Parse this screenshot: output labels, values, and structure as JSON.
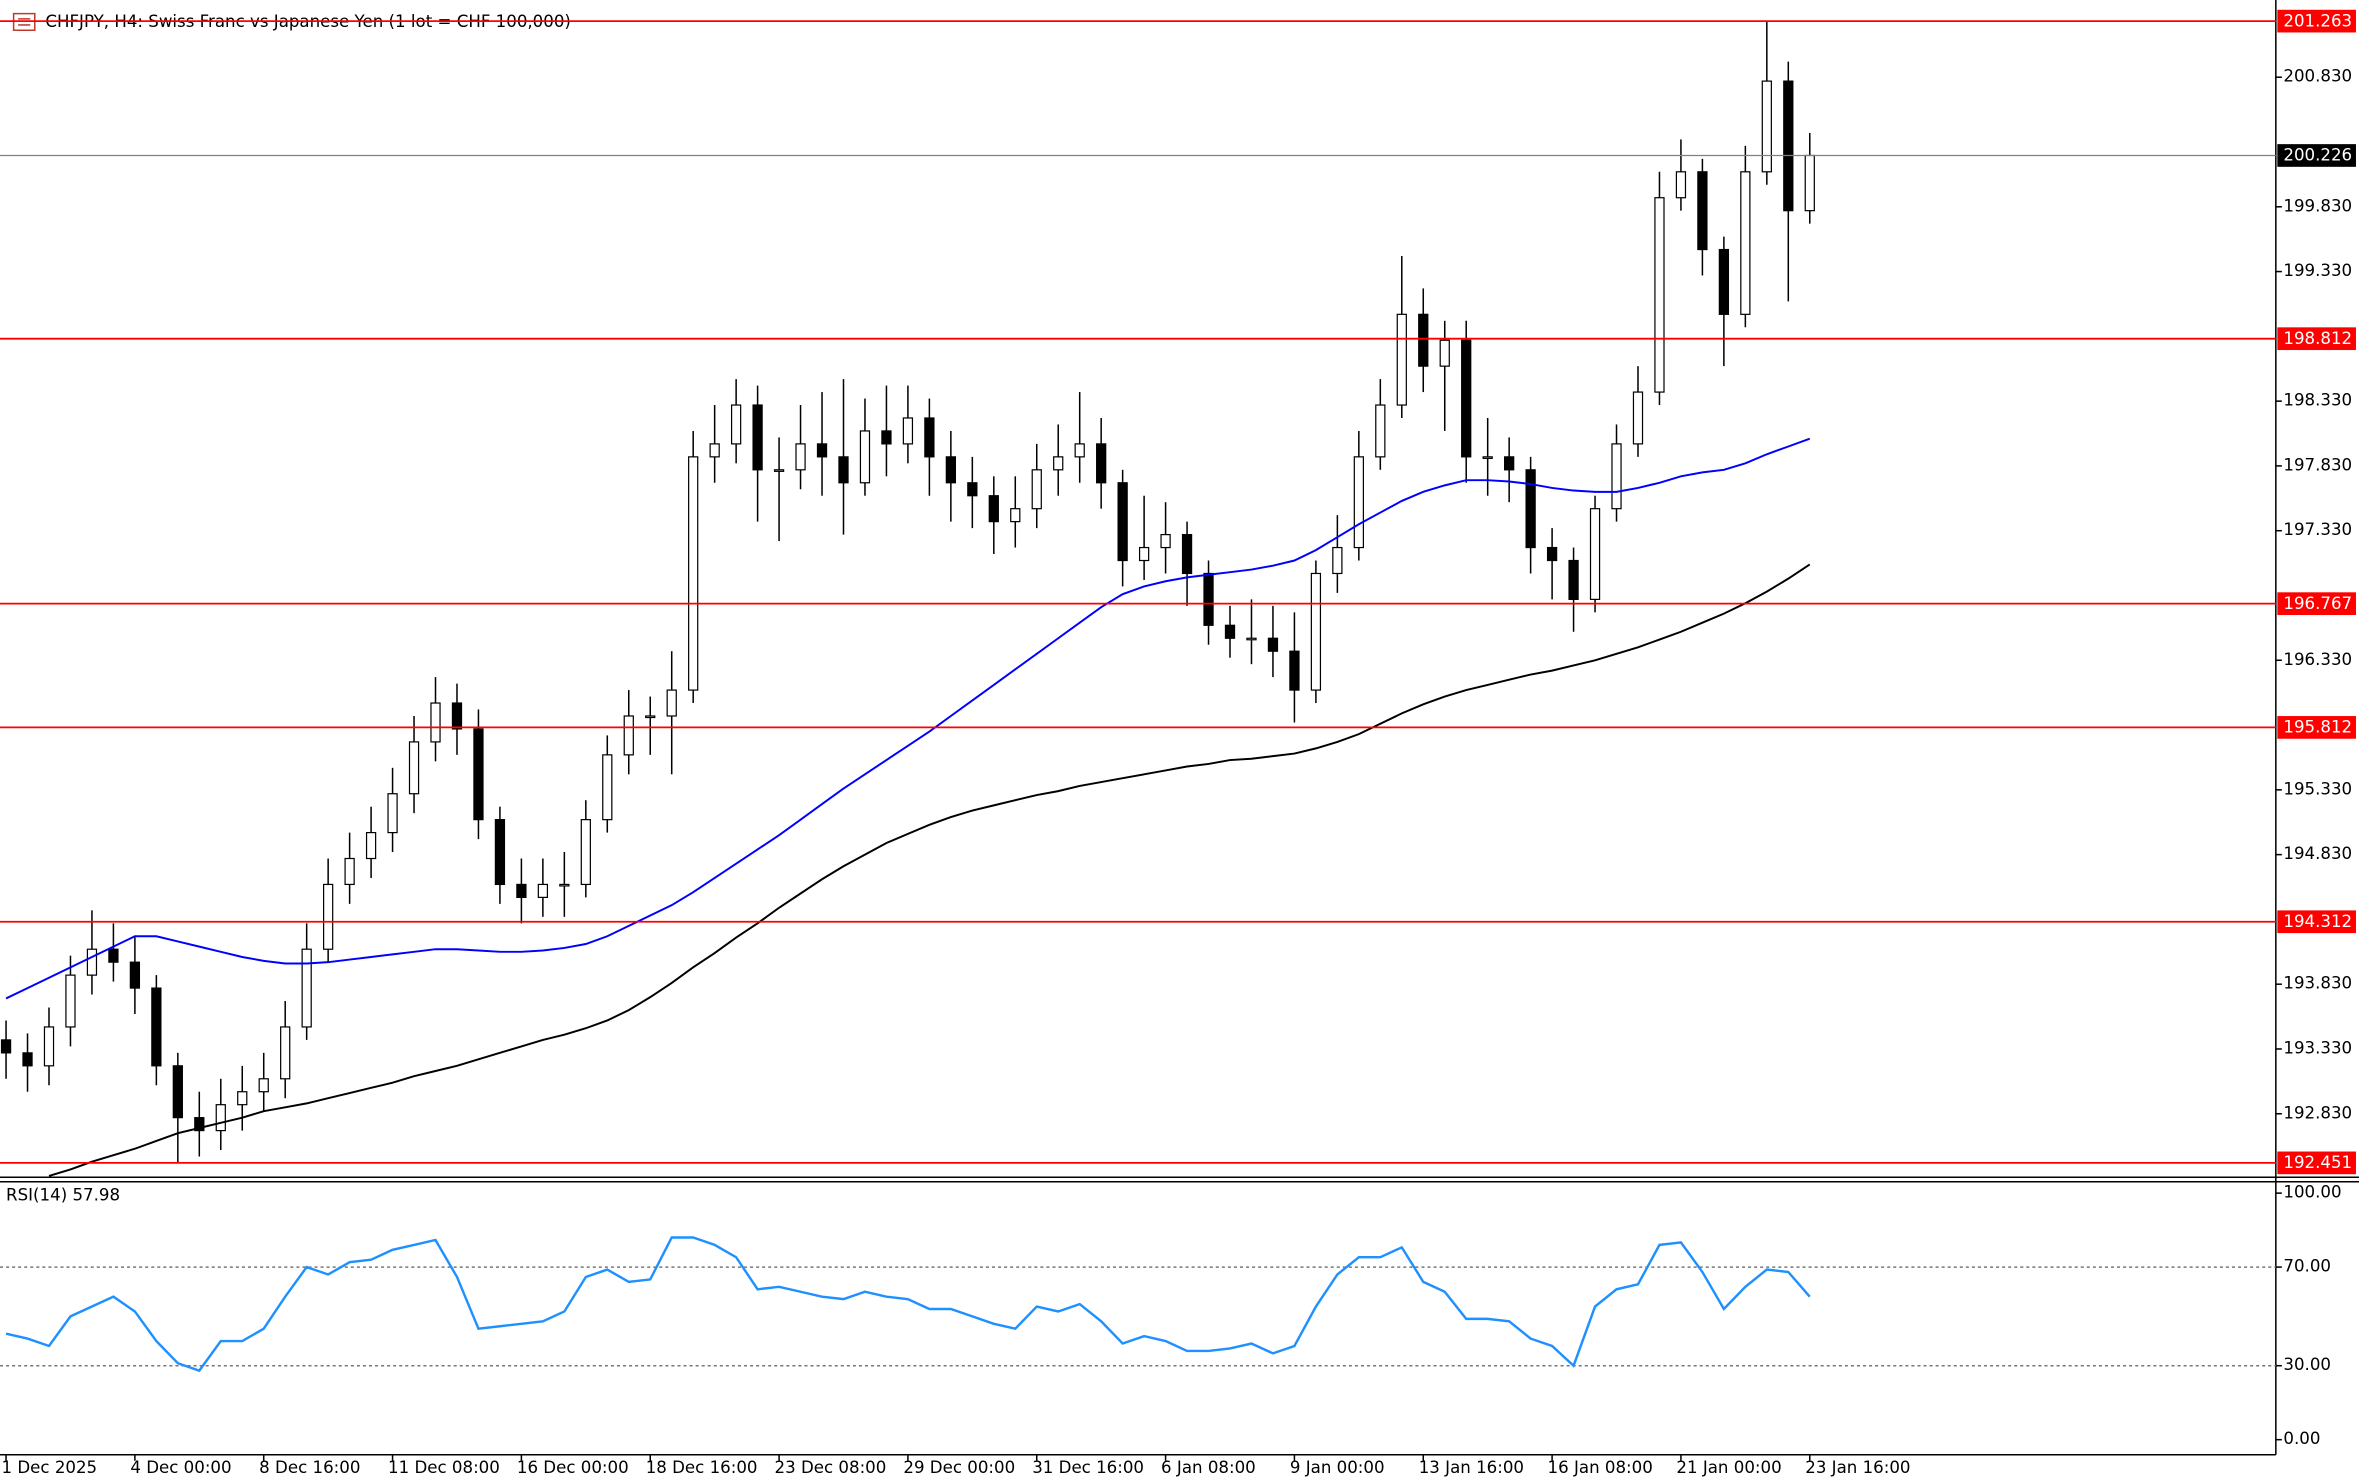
{
  "chart_data": [
    {
      "type": "candlestick",
      "title": "CHFJPY, H4:  Swiss Franc vs Japanese Yen (1 lot = CHF 100,000)",
      "categories": [
        "1 Dec 2025",
        null,
        null,
        null,
        null,
        null,
        "4 Dec 00:00",
        null,
        null,
        null,
        null,
        null,
        "8 Dec 16:00",
        null,
        null,
        null,
        null,
        null,
        "11 Dec 08:00",
        null,
        null,
        null,
        null,
        null,
        "16 Dec 00:00",
        null,
        null,
        null,
        null,
        null,
        "18 Dec 16:00",
        null,
        null,
        null,
        null,
        null,
        "23 Dec 08:00",
        null,
        null,
        null,
        null,
        null,
        "29 Dec 00:00",
        null,
        null,
        null,
        null,
        null,
        "31 Dec 16:00",
        null,
        null,
        null,
        null,
        null,
        "6 Jan 08:00",
        null,
        null,
        null,
        null,
        null,
        "9 Jan 00:00",
        null,
        null,
        null,
        null,
        null,
        "13 Jan 16:00",
        null,
        null,
        null,
        null,
        null,
        "16 Jan 08:00",
        null,
        null,
        null,
        null,
        null,
        "21 Jan 00:00",
        null,
        null,
        null,
        null,
        null,
        "23 Jan 16:00"
      ],
      "open": [
        193.4,
        193.3,
        193.2,
        193.5,
        193.9,
        194.1,
        194.0,
        193.8,
        193.2,
        192.8,
        192.7,
        192.9,
        193.0,
        193.1,
        193.5,
        194.1,
        194.6,
        194.8,
        195.0,
        195.3,
        195.7,
        196.0,
        195.8,
        195.1,
        194.6,
        194.5,
        194.6,
        194.6,
        195.1,
        195.6,
        195.9,
        195.9,
        196.1,
        197.9,
        198.0,
        198.3,
        197.8,
        197.8,
        198.0,
        197.9,
        197.7,
        198.1,
        198.0,
        198.2,
        197.9,
        197.7,
        197.6,
        197.4,
        197.5,
        197.8,
        197.9,
        198.0,
        197.7,
        197.1,
        197.2,
        197.3,
        197.0,
        196.6,
        196.5,
        196.5,
        196.4,
        196.1,
        197.0,
        197.2,
        197.9,
        198.3,
        199.0,
        198.6,
        198.8,
        197.9,
        197.9,
        197.8,
        197.2,
        197.1,
        196.8,
        197.5,
        198.0,
        198.4,
        199.9,
        200.1,
        199.5,
        199.0,
        200.1,
        200.8,
        199.8
      ],
      "high": [
        193.55,
        193.45,
        193.65,
        194.05,
        194.4,
        194.3,
        194.2,
        193.9,
        193.3,
        193.0,
        193.1,
        193.2,
        193.3,
        193.7,
        194.3,
        194.8,
        195.0,
        195.2,
        195.5,
        195.9,
        196.2,
        196.15,
        195.95,
        195.2,
        194.8,
        194.8,
        194.85,
        195.25,
        195.75,
        196.1,
        196.05,
        196.4,
        198.1,
        198.3,
        198.5,
        198.45,
        198.05,
        198.3,
        198.4,
        198.5,
        198.35,
        198.45,
        198.45,
        198.35,
        198.1,
        197.9,
        197.75,
        197.75,
        198.0,
        198.15,
        198.4,
        198.2,
        197.8,
        197.6,
        197.55,
        197.4,
        197.1,
        196.75,
        196.8,
        196.75,
        196.7,
        197.1,
        197.45,
        198.1,
        198.5,
        199.45,
        199.2,
        198.95,
        198.95,
        198.2,
        198.05,
        197.9,
        197.35,
        197.2,
        197.6,
        198.15,
        198.6,
        200.1,
        200.35,
        200.2,
        199.6,
        200.3,
        201.263,
        200.95,
        200.4
      ],
      "low": [
        193.1,
        193.0,
        193.05,
        193.35,
        193.75,
        193.85,
        193.6,
        193.05,
        192.45,
        192.5,
        192.55,
        192.7,
        192.85,
        192.95,
        193.4,
        194.0,
        194.45,
        194.65,
        194.85,
        195.15,
        195.55,
        195.6,
        194.95,
        194.45,
        194.3,
        194.35,
        194.35,
        194.5,
        195.0,
        195.45,
        195.6,
        195.45,
        196.0,
        197.7,
        197.85,
        197.4,
        197.25,
        197.65,
        197.6,
        197.3,
        197.6,
        197.75,
        197.85,
        197.6,
        197.4,
        197.35,
        197.15,
        197.2,
        197.35,
        197.6,
        197.7,
        197.5,
        196.9,
        196.95,
        197.0,
        196.75,
        196.45,
        196.35,
        196.3,
        196.2,
        195.85,
        196.0,
        196.85,
        197.1,
        197.8,
        198.2,
        198.4,
        198.1,
        197.7,
        197.6,
        197.55,
        197.0,
        196.8,
        196.55,
        196.7,
        197.4,
        197.9,
        198.3,
        199.8,
        199.3,
        198.6,
        198.9,
        200.0,
        199.1,
        199.7
      ],
      "close": [
        193.3,
        193.2,
        193.5,
        193.9,
        194.1,
        194.0,
        193.8,
        193.2,
        192.8,
        192.7,
        192.9,
        193.0,
        193.1,
        193.5,
        194.1,
        194.6,
        194.8,
        195.0,
        195.3,
        195.7,
        196.0,
        195.8,
        195.1,
        194.6,
        194.5,
        194.6,
        194.6,
        195.1,
        195.6,
        195.9,
        195.9,
        196.1,
        197.9,
        198.0,
        198.3,
        197.8,
        197.8,
        198.0,
        197.9,
        197.7,
        198.1,
        198.0,
        198.2,
        197.9,
        197.7,
        197.6,
        197.4,
        197.5,
        197.8,
        197.9,
        198.0,
        197.7,
        197.1,
        197.2,
        197.3,
        197.0,
        196.6,
        196.5,
        196.5,
        196.4,
        196.1,
        197.0,
        197.2,
        197.9,
        198.3,
        199.0,
        198.6,
        198.8,
        197.9,
        197.9,
        197.8,
        197.2,
        197.1,
        196.8,
        197.5,
        198.0,
        198.4,
        199.9,
        200.1,
        199.5,
        199.0,
        200.1,
        200.8,
        199.8,
        200.226
      ],
      "series": [
        {
          "color": "#0000ff",
          "values": [
            193.72,
            193.8,
            193.88,
            193.96,
            194.04,
            194.12,
            194.2,
            194.2,
            194.16,
            194.12,
            194.08,
            194.04,
            194.01,
            193.99,
            193.99,
            194.0,
            194.02,
            194.04,
            194.06,
            194.08,
            194.1,
            194.1,
            194.09,
            194.08,
            194.08,
            194.09,
            194.11,
            194.14,
            194.2,
            194.28,
            194.36,
            194.44,
            194.54,
            194.65,
            194.76,
            194.87,
            194.98,
            195.1,
            195.22,
            195.34,
            195.45,
            195.56,
            195.67,
            195.78,
            195.9,
            196.02,
            196.14,
            196.26,
            196.38,
            196.5,
            196.62,
            196.74,
            196.84,
            196.9,
            196.94,
            196.97,
            196.99,
            197.01,
            197.03,
            197.06,
            197.1,
            197.18,
            197.28,
            197.38,
            197.47,
            197.56,
            197.63,
            197.68,
            197.72,
            197.72,
            197.71,
            197.69,
            197.66,
            197.64,
            197.63,
            197.63,
            197.66,
            197.7,
            197.75,
            197.78,
            197.8,
            197.85,
            197.92,
            197.98,
            198.04
          ]
        },
        {
          "color": "#000000",
          "values": [
            null,
            null,
            192.35,
            192.4,
            192.46,
            192.51,
            192.56,
            192.62,
            192.68,
            192.72,
            192.76,
            192.8,
            192.85,
            192.88,
            192.91,
            192.95,
            192.99,
            193.03,
            193.07,
            193.12,
            193.16,
            193.2,
            193.25,
            193.3,
            193.35,
            193.4,
            193.44,
            193.49,
            193.55,
            193.63,
            193.73,
            193.84,
            193.96,
            194.07,
            194.19,
            194.3,
            194.42,
            194.53,
            194.64,
            194.74,
            194.83,
            194.92,
            194.99,
            195.06,
            195.12,
            195.17,
            195.21,
            195.25,
            195.29,
            195.32,
            195.36,
            195.39,
            195.42,
            195.45,
            195.48,
            195.51,
            195.53,
            195.56,
            195.57,
            195.59,
            195.61,
            195.65,
            195.7,
            195.76,
            195.84,
            195.92,
            195.99,
            196.05,
            196.1,
            196.14,
            196.18,
            196.22,
            196.25,
            196.29,
            196.33,
            196.38,
            196.43,
            196.49,
            196.55,
            196.62,
            196.69,
            196.77,
            196.86,
            196.96,
            197.07
          ]
        }
      ],
      "levels": [
        201.263,
        198.812,
        196.767,
        195.812,
        194.312,
        192.451
      ],
      "level_color": "#ff0000",
      "current_price": 200.226,
      "ylim": [
        192.346,
        201.426
      ],
      "yticks": [
        {
          "value": 192.83,
          "label": "192.830"
        },
        {
          "value": 193.33,
          "label": "193.330"
        },
        {
          "value": 193.83,
          "label": "193.830"
        },
        {
          "value": 194.83,
          "label": "194.830"
        },
        {
          "value": 195.33,
          "label": "195.330"
        },
        {
          "value": 196.33,
          "label": "196.330"
        },
        {
          "value": 197.33,
          "label": "197.330"
        },
        {
          "value": 197.83,
          "label": "197.830"
        },
        {
          "value": 198.33,
          "label": "198.330"
        },
        {
          "value": 199.33,
          "label": "199.330"
        },
        {
          "value": 199.83,
          "label": "199.830"
        },
        {
          "value": 200.83,
          "label": "200.830"
        }
      ]
    },
    {
      "type": "line",
      "title": "RSI(14) 57.98",
      "series": [
        {
          "color": "#1e90ff",
          "values": [
            43,
            41,
            38,
            50,
            54,
            58,
            52,
            40,
            31,
            28,
            40,
            40,
            45,
            58,
            70,
            67,
            72,
            73,
            77,
            79,
            81,
            66,
            45,
            46,
            47,
            48,
            52,
            66,
            69,
            64,
            65,
            82,
            82,
            79,
            74,
            61,
            62,
            60,
            58,
            57,
            60,
            58,
            57,
            53,
            53,
            50,
            47,
            45,
            54,
            52,
            55,
            48,
            39,
            42,
            40,
            36,
            36,
            37,
            39,
            35,
            38,
            54,
            67,
            74,
            74,
            78,
            64,
            60,
            49,
            49,
            48,
            41,
            38,
            30,
            54,
            61,
            63,
            79,
            80,
            68,
            53,
            62,
            69,
            68,
            57.98
          ]
        }
      ],
      "levels": [
        70,
        30
      ],
      "ylim": [
        -6.1,
        104.3
      ],
      "yticks": [
        {
          "value": 100,
          "label": "100.00"
        },
        {
          "value": 70,
          "label": "70.00"
        },
        {
          "value": 30,
          "label": "30.00"
        },
        {
          "value": 0,
          "label": "0.00"
        }
      ]
    }
  ]
}
